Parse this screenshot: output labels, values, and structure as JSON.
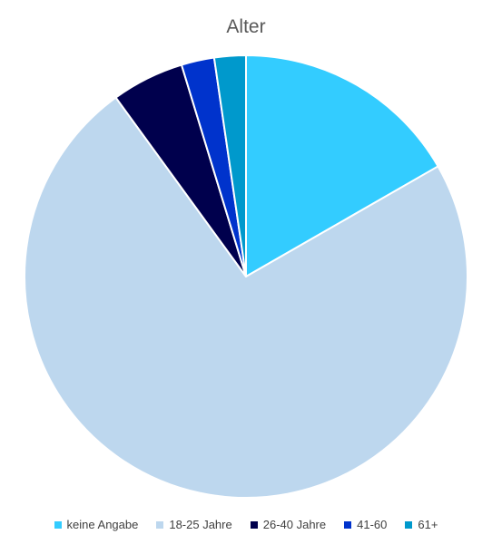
{
  "chart_data": {
    "type": "pie",
    "title": "Alter",
    "legend_position": "bottom",
    "slices": [
      {
        "label": "keine Angabe",
        "value": 16.7,
        "color": "#33CCFF"
      },
      {
        "label": "18-25 Jahre",
        "value": 73.3,
        "color": "#BDD7EE"
      },
      {
        "label": "26-40 Jahre",
        "value": 5.3,
        "color": "#00004D"
      },
      {
        "label": "41-60",
        "value": 2.4,
        "color": "#0033CC"
      },
      {
        "label": "61+",
        "value": 2.3,
        "color": "#0099CC"
      }
    ]
  }
}
